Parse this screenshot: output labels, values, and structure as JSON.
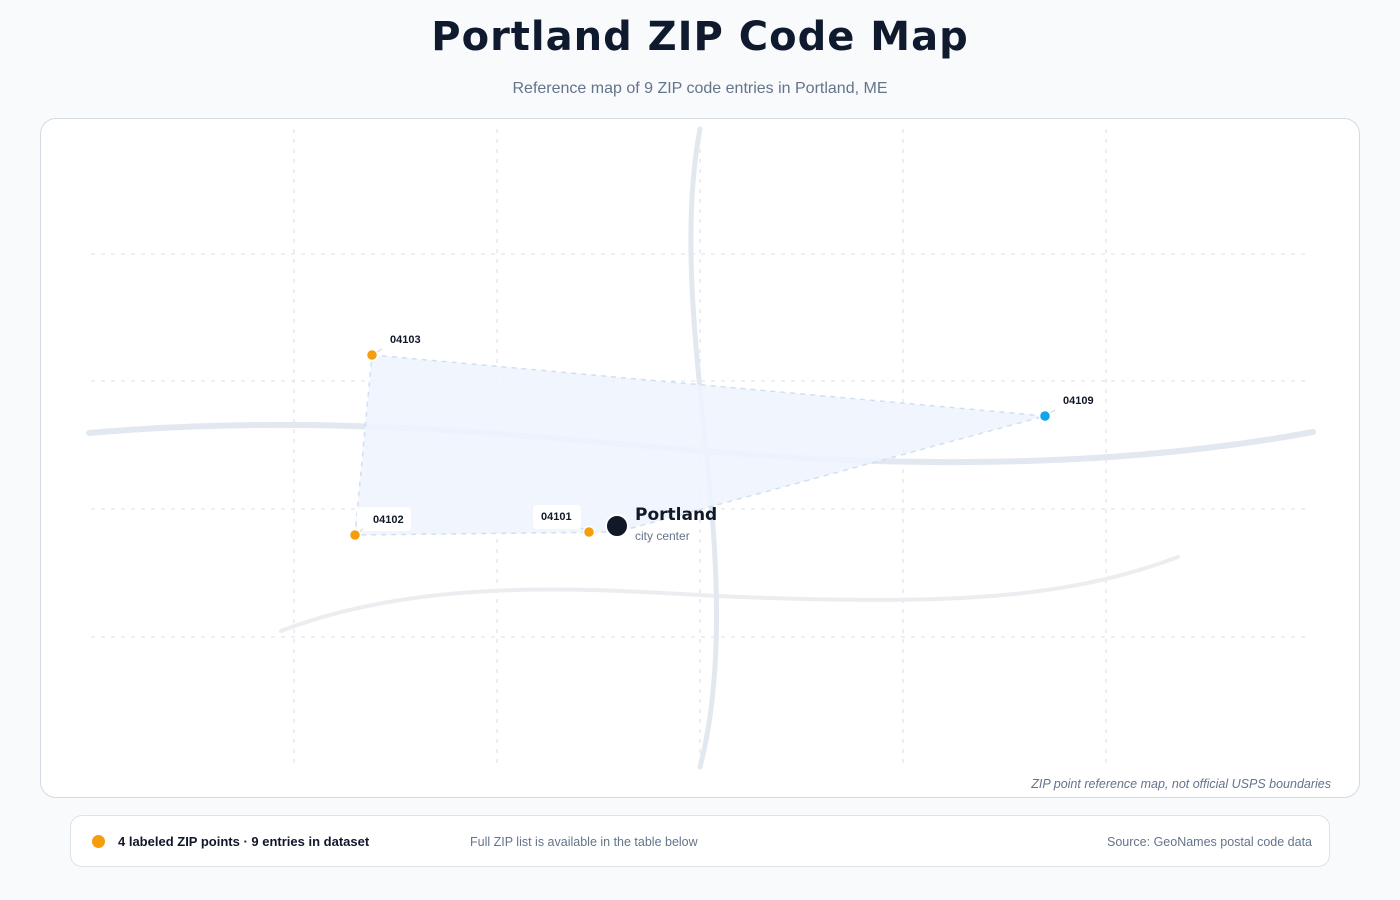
{
  "header": {
    "title": "Portland ZIP Code Map",
    "subtitle": "Reference map of 9 ZIP code entries in Portland, ME"
  },
  "map": {
    "center_label": "Portland",
    "center_sublabel": "city center",
    "note": "ZIP point reference map, not official USPS boundaries",
    "colors": {
      "zip_point": "#f59e0b",
      "zip_point_highlight": "#0ea5e9",
      "center": "#111827",
      "coverage_fill": "#eff5fe",
      "road": "#e2e8f0"
    },
    "zip_points": [
      {
        "zip": "04103",
        "color": "#f59e0b"
      },
      {
        "zip": "04109",
        "color": "#0ea5e9"
      },
      {
        "zip": "04102",
        "color": "#f59e0b"
      },
      {
        "zip": "04101",
        "color": "#f59e0b"
      }
    ]
  },
  "footer": {
    "legend": "4 labeled ZIP points · 9 entries in dataset",
    "table_note": "Full ZIP list is available in the table below",
    "source": "Source: GeoNames postal code data"
  }
}
